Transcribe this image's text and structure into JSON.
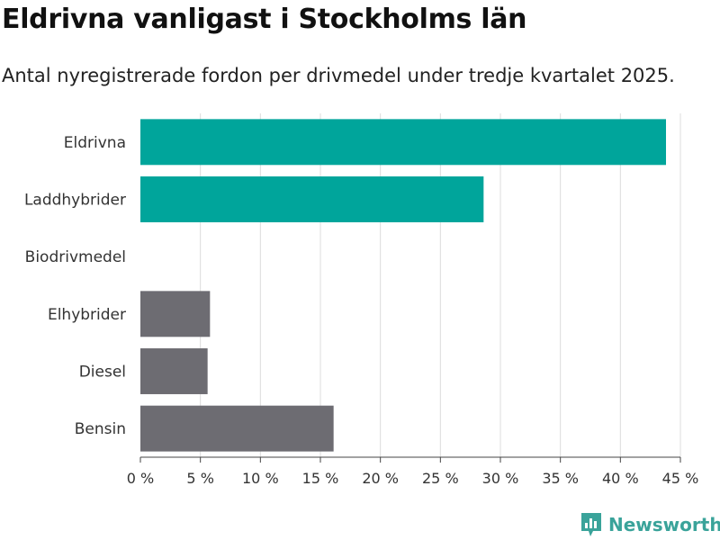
{
  "header": {
    "title": "Eldrivna vanligast i Stockholms län",
    "subtitle": "Antal nyregistrerade fordon per drivmedel under tredje kvartalet 2025."
  },
  "brand": {
    "name": "Newsworthy",
    "color": "#3aa39a"
  },
  "chart_data": {
    "type": "bar",
    "orientation": "horizontal",
    "title": "Eldrivna vanligast i Stockholms län",
    "subtitle": "Antal nyregistrerade fordon per drivmedel under tredje kvartalet 2025.",
    "categories": [
      "Eldrivna",
      "Laddhybrider",
      "Biodrivmedel",
      "Elhybrider",
      "Diesel",
      "Bensin"
    ],
    "values": [
      43.8,
      28.6,
      0,
      5.8,
      5.6,
      16.1
    ],
    "colors": [
      "#00a59b",
      "#00a59b",
      "#00a59b",
      "#6d6c72",
      "#6d6c72",
      "#6d6c72"
    ],
    "xlim": [
      0,
      45
    ],
    "xticks": [
      0,
      5,
      10,
      15,
      20,
      25,
      30,
      35,
      40,
      45
    ],
    "xtick_labels": [
      "0 %",
      "5 %",
      "10 %",
      "15 %",
      "20 %",
      "25 %",
      "30 %",
      "35 %",
      "40 %",
      "45 %"
    ],
    "grid": true,
    "xlabel": "",
    "ylabel": ""
  }
}
